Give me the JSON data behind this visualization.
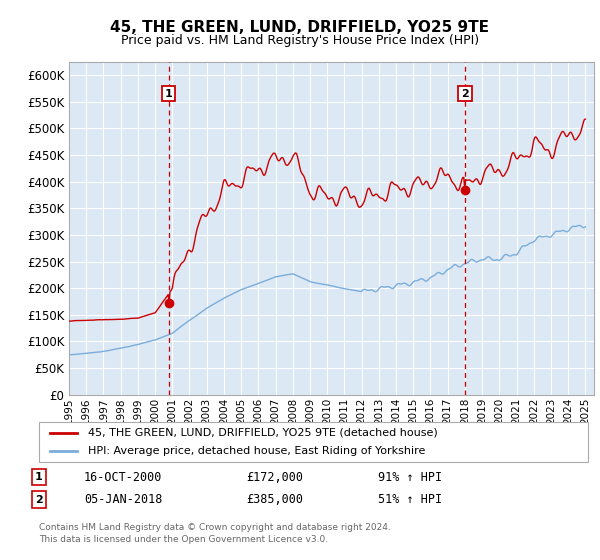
{
  "title": "45, THE GREEN, LUND, DRIFFIELD, YO25 9TE",
  "subtitle": "Price paid vs. HM Land Registry's House Price Index (HPI)",
  "ylabel_ticks": [
    "£0",
    "£50K",
    "£100K",
    "£150K",
    "£200K",
    "£250K",
    "£300K",
    "£350K",
    "£400K",
    "£450K",
    "£500K",
    "£550K",
    "£600K"
  ],
  "ytick_values": [
    0,
    50000,
    100000,
    150000,
    200000,
    250000,
    300000,
    350000,
    400000,
    450000,
    500000,
    550000,
    600000
  ],
  "ylim": [
    0,
    625000
  ],
  "xlim_start": 1995.0,
  "xlim_end": 2025.5,
  "plot_bg_color": "#dce9f5",
  "red_line_color": "#cc0000",
  "blue_line_color": "#7aaddb",
  "dashed_line_color": "#cc0000",
  "marker1_x": 2000.79,
  "marker1_y": 172000,
  "marker2_x": 2018.01,
  "marker2_y": 385000,
  "legend_red_label": "45, THE GREEN, LUND, DRIFFIELD, YO25 9TE (detached house)",
  "legend_blue_label": "HPI: Average price, detached house, East Riding of Yorkshire",
  "annotation1_date": "16-OCT-2000",
  "annotation1_price": "£172,000",
  "annotation1_hpi": "91% ↑ HPI",
  "annotation2_date": "05-JAN-2018",
  "annotation2_price": "£385,000",
  "annotation2_hpi": "51% ↑ HPI",
  "footer_text": "Contains HM Land Registry data © Crown copyright and database right 2024.\nThis data is licensed under the Open Government Licence v3.0.",
  "xtick_years": [
    1995,
    1996,
    1997,
    1998,
    1999,
    2000,
    2001,
    2002,
    2003,
    2004,
    2005,
    2006,
    2007,
    2008,
    2009,
    2010,
    2011,
    2012,
    2013,
    2014,
    2015,
    2016,
    2017,
    2018,
    2019,
    2020,
    2021,
    2022,
    2023,
    2024,
    2025
  ]
}
